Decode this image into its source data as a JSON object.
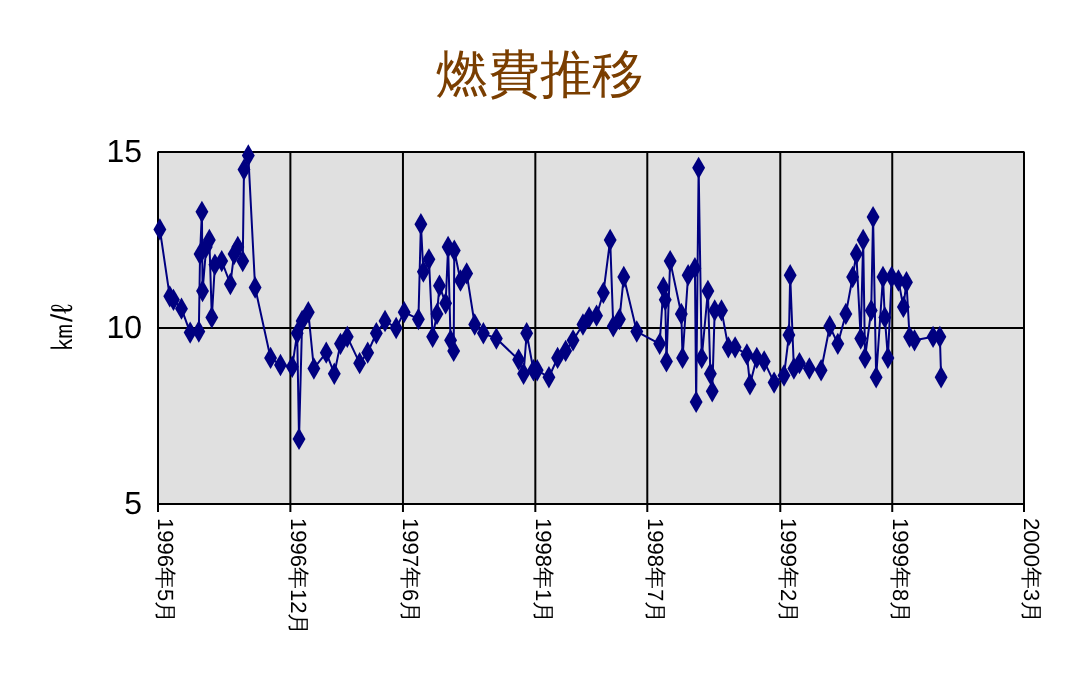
{
  "chart_data": {
    "type": "line",
    "title": "燃費推移",
    "ylabel": "㎞/ℓ",
    "xlim": [
      "1996-05",
      "2000-03"
    ],
    "xticks": [
      {
        "value": "1996-05",
        "label": "1996年5月"
      },
      {
        "value": "1996-12",
        "label": "1996年12月"
      },
      {
        "value": "1997-06",
        "label": "1997年6月"
      },
      {
        "value": "1998-01",
        "label": "1998年1月"
      },
      {
        "value": "1998-07",
        "label": "1998年7月"
      },
      {
        "value": "1999-02",
        "label": "1999年2月"
      },
      {
        "value": "1999-08",
        "label": "1999年8月"
      },
      {
        "value": "2000-03",
        "label": "2000年3月"
      }
    ],
    "ylim": [
      5,
      15
    ],
    "yticks": [
      5,
      10,
      15
    ],
    "grid": true,
    "marker": "diamond",
    "line_style": "solid",
    "series": [
      {
        "color": "#000080",
        "x": [
          "1996-05-04",
          "1996-05-20",
          "1996-05-26",
          "1996-06-08",
          "1996-06-22",
          "1996-07-06",
          "1996-07-08",
          "1996-07-11",
          "1996-07-12",
          "1996-07-18",
          "1996-07-23",
          "1996-07-27",
          "1996-08-01",
          "1996-08-12",
          "1996-08-26",
          "1996-09-01",
          "1996-09-07",
          "1996-09-15",
          "1996-09-17",
          "1996-09-24",
          "1996-10-05",
          "1996-10-30",
          "1996-11-15",
          "1996-12-04",
          "1996-12-12",
          "1996-12-15",
          "1996-12-20",
          "1996-12-30",
          "1997-01-08",
          "1997-01-28",
          "1997-02-10",
          "1997-02-20",
          "1997-03-03",
          "1997-03-23",
          "1997-04-05",
          "1997-04-19",
          "1997-05-03",
          "1997-05-21",
          "1997-06-03",
          "1997-06-26",
          "1997-06-30",
          "1997-07-04",
          "1997-07-13",
          "1997-07-19",
          "1997-07-26",
          "1997-07-30",
          "1997-08-09",
          "1997-08-13",
          "1997-08-17",
          "1997-08-22",
          "1997-08-23",
          "1997-09-02",
          "1997-09-12",
          "1997-09-25",
          "1997-10-09",
          "1997-10-30",
          "1997-12-05",
          "1997-12-13",
          "1997-12-18",
          "1997-12-29",
          "1998-01-04",
          "1998-01-23",
          "1998-02-06",
          "1998-02-19",
          "1998-03-03",
          "1998-03-19",
          "1998-03-29",
          "1998-04-10",
          "1998-04-21",
          "1998-05-02",
          "1998-05-07",
          "1998-05-17",
          "1998-05-24",
          "1998-06-14",
          "1998-07-21",
          "1998-07-27",
          "1998-07-30",
          "1998-08-01",
          "1998-08-07",
          "1998-08-25",
          "1998-08-27",
          "1998-09-05",
          "1998-09-16",
          "1998-09-18",
          "1998-09-22",
          "1998-09-27",
          "1998-10-07",
          "1998-10-11",
          "1998-10-14",
          "1998-10-18",
          "1998-10-29",
          "1998-11-09",
          "1998-11-20",
          "1998-12-09",
          "1998-12-14",
          "1998-12-25",
          "1999-01-06",
          "1999-01-22",
          "1999-02-07",
          "1999-02-15",
          "1999-02-17",
          "1999-02-23",
          "1999-03-04",
          "1999-03-20",
          "1999-04-08",
          "1999-04-22",
          "1999-05-05",
          "1999-05-18",
          "1999-05-29",
          "1999-06-04",
          "1999-06-11",
          "1999-06-15",
          "1999-06-18",
          "1999-06-28",
          "1999-07-01",
          "1999-07-06",
          "1999-07-17",
          "1999-07-20",
          "1999-07-25",
          "1999-07-31",
          "1999-08-11",
          "1999-08-19",
          "1999-08-24",
          "1999-08-29",
          "1999-09-06",
          "1999-10-06",
          "1999-10-17",
          "1999-10-19"
        ],
        "values": [
          12.8,
          10.9,
          10.8,
          10.55,
          9.87,
          9.9,
          12.1,
          13.3,
          11.05,
          12.3,
          12.5,
          10.3,
          11.8,
          11.9,
          11.25,
          12.1,
          12.3,
          11.9,
          14.5,
          14.9,
          11.15,
          9.15,
          8.95,
          8.9,
          9.85,
          6.85,
          10.2,
          10.45,
          8.85,
          9.3,
          8.7,
          9.55,
          9.75,
          9.0,
          9.3,
          9.85,
          10.2,
          10.0,
          10.45,
          10.25,
          12.95,
          11.6,
          11.95,
          9.75,
          10.4,
          11.2,
          10.7,
          12.3,
          9.65,
          9.35,
          12.2,
          11.35,
          11.55,
          10.1,
          9.85,
          9.7,
          9.1,
          8.7,
          9.85,
          8.8,
          8.8,
          8.6,
          9.15,
          9.35,
          9.65,
          10.1,
          10.3,
          10.35,
          11.0,
          12.5,
          10.05,
          10.25,
          11.45,
          9.9,
          9.55,
          11.15,
          10.8,
          9.05,
          11.9,
          10.4,
          9.15,
          11.5,
          11.7,
          7.9,
          14.55,
          9.15,
          11.05,
          8.7,
          8.2,
          10.5,
          10.5,
          9.45,
          9.45,
          9.25,
          8.4,
          9.15,
          9.05,
          8.45,
          8.65,
          9.8,
          11.5,
          8.85,
          9.0,
          8.85,
          8.8,
          10.05,
          9.55,
          10.4,
          11.45,
          12.1,
          9.7,
          12.5,
          9.15,
          10.5,
          13.15,
          8.6,
          11.45,
          10.3,
          9.15,
          11.45,
          11.35,
          10.6,
          11.3,
          9.75,
          9.65,
          9.75,
          9.75,
          8.6
        ]
      }
    ]
  }
}
